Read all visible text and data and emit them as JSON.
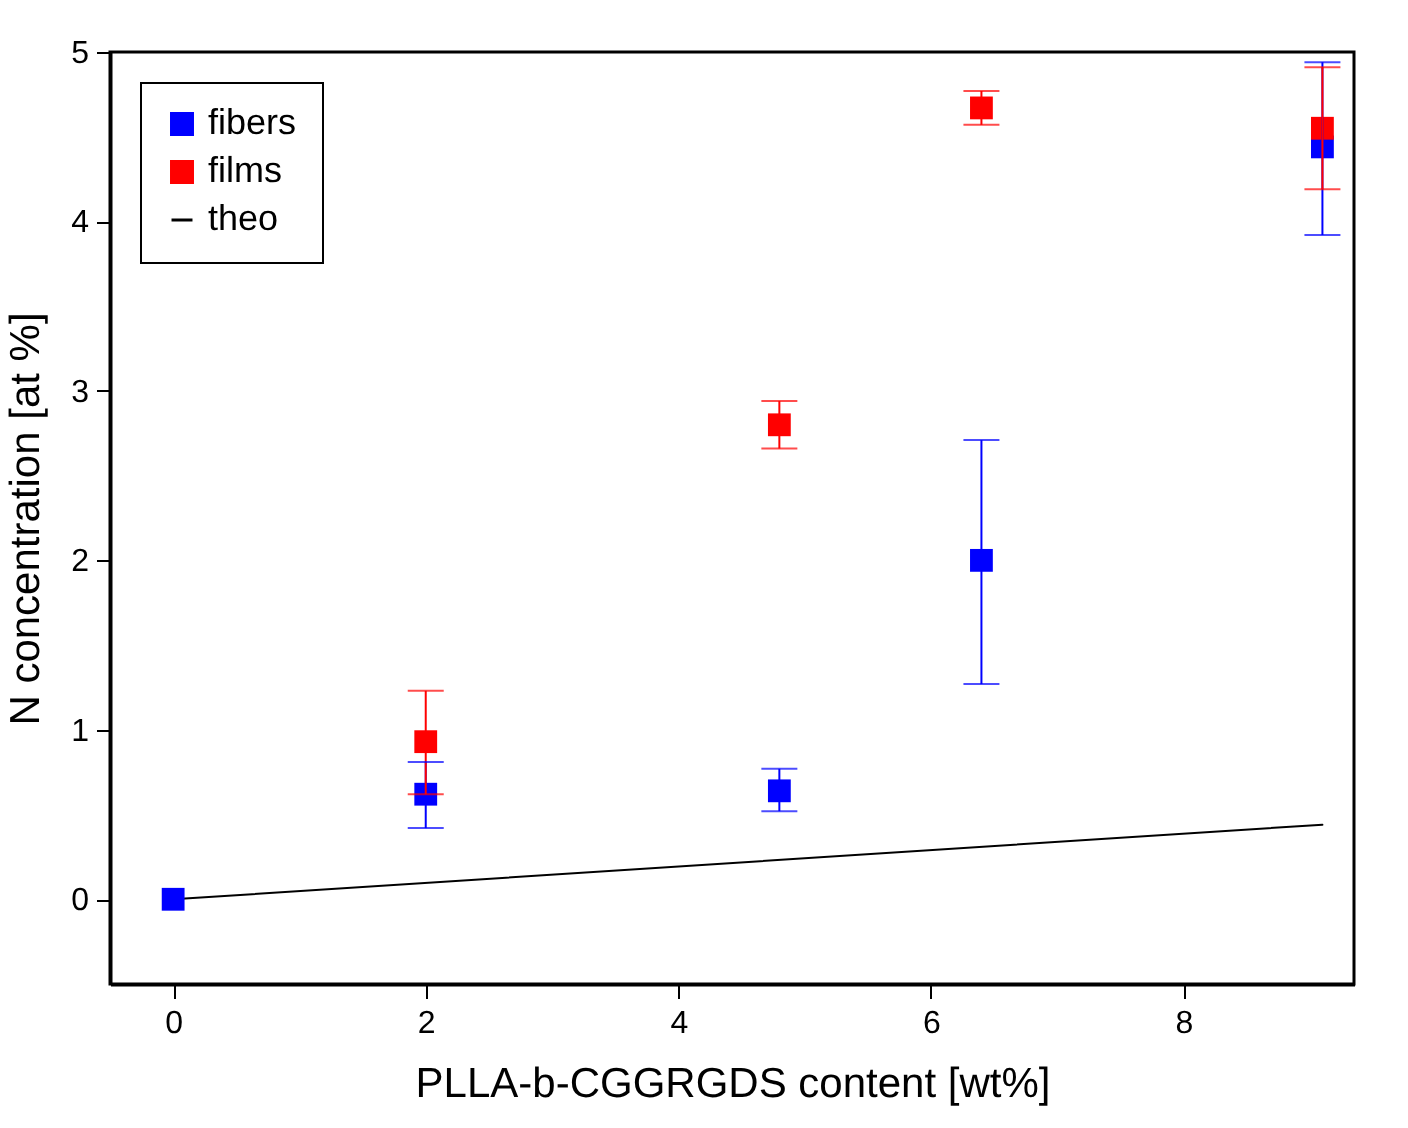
{
  "chart_data": {
    "type": "scatter",
    "xlabel": "PLLA-b-CGGRGDS content [wt%]",
    "ylabel": "N concentration [at %]",
    "xlim": [
      -0.5,
      9.35
    ],
    "xticks": [
      0,
      2,
      4,
      6,
      8
    ],
    "ylim": [
      -0.5,
      5
    ],
    "yticks": [
      0,
      1,
      2,
      3,
      4,
      5
    ],
    "marker": "square",
    "legend": "top left",
    "grid": false,
    "series": [
      {
        "name": "fibers",
        "color": "#0000ff",
        "x": [
          0,
          2,
          4.8,
          6.4,
          9.1
        ],
        "values": [
          0,
          0.62,
          0.64,
          2.0,
          4.44
        ],
        "errors": [
          null,
          [
            0.42,
            0.81
          ],
          [
            0.52,
            0.77
          ],
          [
            1.27,
            2.71
          ],
          [
            3.92,
            4.94
          ]
        ]
      },
      {
        "name": "films",
        "color": "#ff0000",
        "x": [
          2,
          4.8,
          6.4,
          9.1
        ],
        "values": [
          0.93,
          2.8,
          4.67,
          4.55
        ],
        "errors": [
          [
            0.62,
            1.23
          ],
          [
            2.66,
            2.94
          ],
          [
            4.57,
            4.77
          ],
          [
            4.19,
            4.91
          ]
        ]
      },
      {
        "name": "theo",
        "type": "line",
        "marker": "none",
        "color": "#000000",
        "x": [
          0,
          9.1
        ],
        "values": [
          0,
          0.44
        ]
      }
    ]
  }
}
